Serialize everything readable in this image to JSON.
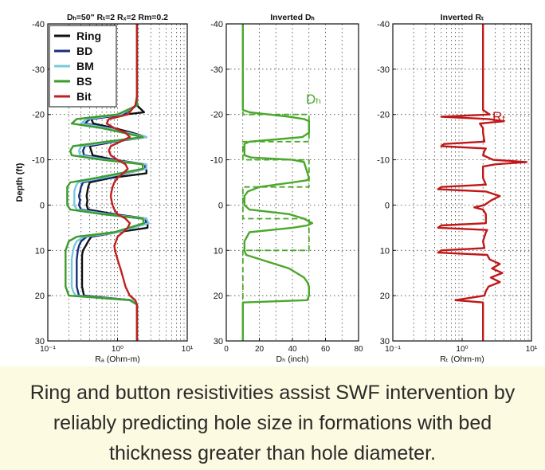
{
  "chart_data": [
    {
      "type": "line",
      "title": "Dₕ=50\" Rₜ=2 Rₓ=2 Rm=0.2",
      "xlabel": "Rₐ (Ohm-m)",
      "ylabel": "Depth (ft)",
      "xscale": "log",
      "xlim": [
        0.1,
        10
      ],
      "ylim": [
        -40,
        30
      ],
      "y_inverted": true,
      "grid": true,
      "x_tick_labels": [
        "10⁻¹",
        "10⁰",
        "10¹"
      ],
      "y_tick_labels": [
        "-40",
        "-30",
        "-20",
        "-10",
        "0",
        "10",
        "20",
        "30"
      ],
      "legend_position": "top-left",
      "series": [
        {
          "name": "Ring",
          "color": "#111111",
          "y": [
            -40,
            -22,
            -20.5,
            -20,
            -19,
            -18,
            -17,
            -16,
            -15,
            -14,
            -13,
            -12,
            -11,
            -10,
            -9,
            -8,
            -7,
            -6,
            -5,
            -4,
            -3,
            -2,
            -1,
            0,
            1,
            2,
            3,
            4,
            5,
            6,
            7,
            8,
            9,
            10,
            11,
            12,
            13,
            14,
            15,
            16,
            17,
            18,
            19,
            20,
            21,
            22,
            30
          ],
          "x": [
            1.9,
            1.9,
            2.4,
            1.3,
            0.42,
            0.45,
            0.9,
            1.6,
            2.6,
            0.9,
            0.4,
            0.42,
            0.44,
            0.9,
            2.5,
            2.6,
            2.6,
            0.8,
            0.4,
            0.38,
            0.37,
            0.36,
            0.37,
            0.36,
            0.38,
            0.9,
            2.6,
            2.7,
            2.7,
            1.0,
            0.42,
            0.38,
            0.35,
            0.32,
            0.31,
            0.31,
            0.31,
            0.31,
            0.31,
            0.31,
            0.31,
            0.31,
            0.32,
            0.33,
            1.6,
            1.9,
            1.9
          ]
        },
        {
          "name": "BD",
          "color": "#1a2f7a",
          "y": [
            -40,
            -22,
            -20,
            -19,
            -18,
            -17,
            -15,
            -14,
            -13,
            -12,
            -11,
            -10,
            -9,
            -8,
            -6,
            -5,
            -4,
            -3,
            -2,
            -1,
            0,
            1,
            2,
            3,
            4,
            6,
            7,
            8,
            9,
            10,
            12,
            14,
            16,
            18,
            19,
            20,
            21,
            22,
            30
          ],
          "x": [
            1.9,
            1.9,
            1.2,
            0.4,
            0.34,
            0.8,
            2.5,
            0.9,
            0.34,
            0.32,
            0.33,
            0.8,
            2.5,
            2.5,
            0.7,
            0.32,
            0.3,
            0.29,
            0.28,
            0.29,
            0.28,
            0.3,
            0.8,
            2.5,
            2.6,
            1.0,
            0.36,
            0.3,
            0.28,
            0.27,
            0.26,
            0.26,
            0.26,
            0.26,
            0.27,
            0.28,
            1.6,
            1.9,
            1.9
          ]
        },
        {
          "name": "BM",
          "color": "#79c8e0",
          "y": [
            -40,
            -22,
            -20,
            -19,
            -18,
            -17,
            -15,
            -14,
            -13,
            -12,
            -11,
            -10,
            -9,
            -8,
            -6,
            -5,
            -4,
            -3,
            -2,
            -1,
            0,
            1,
            2,
            3,
            4,
            6,
            7,
            8,
            9,
            10,
            12,
            14,
            16,
            18,
            19,
            20,
            21,
            22,
            30
          ],
          "x": [
            1.9,
            1.9,
            1.1,
            0.36,
            0.3,
            0.7,
            2.6,
            0.8,
            0.3,
            0.28,
            0.29,
            0.7,
            2.6,
            2.6,
            0.6,
            0.27,
            0.25,
            0.24,
            0.24,
            0.24,
            0.24,
            0.26,
            0.7,
            2.6,
            2.8,
            1.0,
            0.33,
            0.26,
            0.24,
            0.23,
            0.22,
            0.22,
            0.22,
            0.22,
            0.23,
            0.25,
            1.6,
            1.9,
            1.9
          ]
        },
        {
          "name": "BS",
          "color": "#3a9c2a",
          "y": [
            -40,
            -22,
            -20,
            -19,
            -18,
            -17,
            -15,
            -14,
            -13,
            -12,
            -11,
            -10,
            -9,
            -8,
            -6,
            -5,
            -4,
            -3,
            -2,
            -1,
            0,
            1,
            2,
            3,
            4,
            6,
            7,
            8,
            9,
            10,
            12,
            14,
            16,
            18,
            19,
            20,
            21,
            22,
            30
          ],
          "x": [
            1.9,
            1.9,
            1.0,
            0.26,
            0.22,
            0.6,
            2.3,
            0.7,
            0.23,
            0.21,
            0.22,
            0.6,
            2.3,
            2.3,
            0.5,
            0.21,
            0.19,
            0.19,
            0.19,
            0.19,
            0.19,
            0.21,
            0.6,
            2.3,
            2.4,
            0.9,
            0.26,
            0.2,
            0.19,
            0.18,
            0.18,
            0.18,
            0.18,
            0.18,
            0.19,
            0.2,
            1.5,
            1.9,
            1.9
          ]
        },
        {
          "name": "Bit",
          "color": "#c02020",
          "y": [
            -40,
            -24,
            -22,
            -20,
            -19,
            -18,
            -17,
            -16,
            -15,
            -14,
            -13,
            -12,
            -11,
            -10,
            -9,
            -8,
            -7,
            -6,
            -5,
            -4,
            -3,
            -2,
            -1,
            0,
            1,
            2,
            3,
            4,
            5,
            6,
            7,
            8,
            9,
            10,
            12,
            14,
            16,
            18,
            20,
            21,
            22,
            30
          ],
          "x": [
            1.9,
            1.9,
            1.8,
            1.4,
            0.75,
            0.7,
            0.9,
            1.3,
            1.5,
            1.1,
            0.8,
            0.75,
            0.8,
            1.0,
            1.3,
            1.4,
            1.2,
            1.0,
            0.9,
            0.85,
            0.82,
            0.8,
            0.82,
            0.85,
            0.9,
            1.0,
            1.3,
            1.5,
            1.4,
            1.2,
            1.0,
            0.95,
            0.9,
            0.92,
            1.0,
            1.1,
            1.2,
            1.3,
            1.5,
            1.8,
            1.9,
            1.9
          ]
        }
      ]
    },
    {
      "type": "line",
      "title": "Inverted Dₕ",
      "xlabel": "Dₕ (inch)",
      "ylabel": "",
      "xlim": [
        0,
        80
      ],
      "ylim": [
        -40,
        30
      ],
      "y_inverted": true,
      "grid": true,
      "x_tick_labels": [
        "0",
        "20",
        "40",
        "60",
        "80"
      ],
      "y_tick_labels": [
        "-40",
        "-30",
        "-20",
        "-10",
        "0",
        "10",
        "20",
        "30"
      ],
      "annotation": "Dₕ",
      "series": [
        {
          "name": "",
          "style": "solid",
          "color": "#4aa82a",
          "y": [
            -40,
            -21,
            -20.5,
            -19.5,
            -19,
            -18.5,
            -16,
            -15,
            -14.5,
            -14,
            -13.5,
            -12,
            -11,
            -10.5,
            -10,
            -9.5,
            -6,
            -5.5,
            -5,
            -4,
            -3,
            -2,
            -1,
            0,
            1,
            2,
            3,
            4,
            4.5,
            5,
            6,
            8,
            9.5,
            10,
            11,
            14,
            16,
            17,
            18,
            19,
            20,
            21,
            21.5,
            22,
            30
          ],
          "x": [
            10,
            10,
            14,
            38,
            47,
            50,
            50,
            46,
            30,
            14,
            11,
            11,
            11,
            15,
            40,
            47,
            50,
            49,
            40,
            20,
            13,
            11,
            11,
            11,
            14,
            38,
            47,
            52,
            49,
            40,
            14,
            11,
            11,
            11,
            12,
            38,
            47,
            49,
            50,
            50,
            50,
            49,
            10,
            10,
            10
          ]
        },
        {
          "name": "",
          "style": "dashed",
          "color": "#4aa82a",
          "y": [
            -40,
            -20,
            -20,
            -14,
            -14,
            -10,
            -10,
            -4,
            -4,
            3,
            3,
            10,
            10,
            20,
            20,
            30
          ],
          "x": [
            10,
            10,
            50,
            50,
            10,
            10,
            50,
            50,
            10,
            10,
            50,
            50,
            10,
            10,
            10,
            10
          ]
        }
      ]
    },
    {
      "type": "line",
      "title": "Inverted Rₜ",
      "xlabel": "Rₜ (Ohm-m)",
      "ylabel": "",
      "xscale": "log",
      "xlim": [
        0.1,
        10
      ],
      "ylim": [
        -40,
        30
      ],
      "y_inverted": true,
      "grid": true,
      "x_tick_labels": [
        "10⁻¹",
        "10⁰",
        "10¹"
      ],
      "y_tick_labels": [
        "-40",
        "-30",
        "-20",
        "-10",
        "0",
        "10",
        "20",
        "30"
      ],
      "annotation": "Rₜ",
      "series": [
        {
          "name": "",
          "color": "#c01818",
          "y": [
            -40,
            -22,
            -21,
            -20,
            -19.5,
            -19,
            -18.5,
            -18,
            -17,
            -16,
            -14,
            -13.5,
            -13,
            -12.5,
            -12,
            -11,
            -10,
            -9.5,
            -9,
            -8.5,
            -8,
            -6,
            -4.5,
            -4,
            -3.5,
            -3,
            -2,
            -1,
            0,
            0.5,
            1,
            2,
            4,
            4.5,
            5,
            5.5,
            6,
            8,
            9.5,
            10,
            10.5,
            11,
            12,
            13,
            14,
            15,
            16,
            17,
            18,
            19,
            20,
            21,
            21.5,
            22,
            30
          ],
          "x": [
            2,
            2,
            2,
            2.5,
            0.5,
            2.4,
            4,
            1.8,
            2,
            2,
            2.1,
            0.55,
            0.5,
            2.2,
            2.1,
            2,
            2.8,
            8.5,
            3,
            2,
            2,
            2,
            2.2,
            0.5,
            0.45,
            2.2,
            3.5,
            2.6,
            2.1,
            1.5,
            2,
            2.2,
            2.2,
            0.5,
            0.45,
            2.3,
            2.2,
            2,
            2.1,
            0.5,
            0.45,
            2.3,
            2.5,
            3.5,
            2.7,
            3.8,
            2.6,
            3.5,
            2.4,
            2.2,
            2.1,
            0.8,
            2,
            2,
            2
          ]
        }
      ]
    }
  ],
  "caption": {
    "text": "Ring and button resistivities assist SWF intervention by reliably predicting hole size in formations with bed thickness greater than hole diameter."
  },
  "colors": {
    "caption_background": "#fcfae0"
  }
}
